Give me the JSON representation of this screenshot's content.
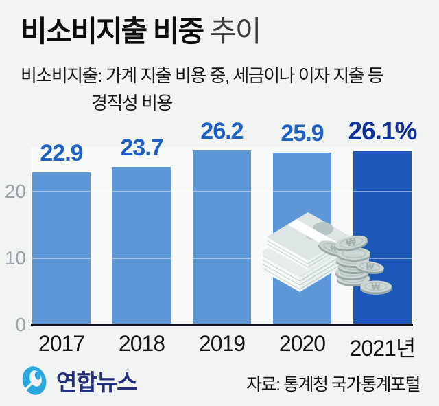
{
  "header": {
    "title_main": "비소비지출 비중",
    "title_sub": "추이",
    "note_label": "비소비지출:",
    "note_line1": "가계 지출 비용 중, 세금이나 이자 지출 등",
    "note_line2": "경직성 비용"
  },
  "chart_data": {
    "type": "bar",
    "title": "비소비지출 비중 추이",
    "categories": [
      "2017",
      "2018",
      "2019",
      "2020",
      "2021년"
    ],
    "values": [
      22.9,
      23.7,
      26.2,
      25.9,
      26.1
    ],
    "value_labels": [
      "22.9",
      "23.7",
      "26.2",
      "25.9",
      "26.1%"
    ],
    "unit": "%",
    "xlabel": "",
    "ylabel": "",
    "yticks": [
      "0",
      "10",
      "20"
    ],
    "ytick_values": [
      0,
      10,
      20
    ],
    "ylim": [
      0,
      28
    ],
    "grid": "horizontal gridlines at 10 and 20, translucent white over bars",
    "legend": "none",
    "bar_colors": [
      "#5e97d8",
      "#5e97d8",
      "#5e97d8",
      "#5e97d8",
      "#1d58b8"
    ],
    "label_colors": [
      "#1e5fc5",
      "#1e5fc5",
      "#1e5fc5",
      "#1e5fc5",
      "#12309b"
    ]
  },
  "illustration": {
    "name": "won-banknote-stack-and-coins",
    "currency_symbol": "₩"
  },
  "footer": {
    "logo_text": "연합뉴스",
    "source": "자료: 통계청 국가통계포털"
  },
  "colors": {
    "background": "#f1f4f2",
    "bar_light": "#5e97d8",
    "bar_dark": "#1d58b8",
    "value_label_blue": "#1e5fc5",
    "value_label_navy": "#12309b",
    "axis_tick_gray": "#99a5ab",
    "baseline_dark": "#13161f",
    "logo_blue": "#2ba7e0",
    "logo_navy": "#232e7d",
    "bill_shadow_blue": "#1d4f91"
  }
}
